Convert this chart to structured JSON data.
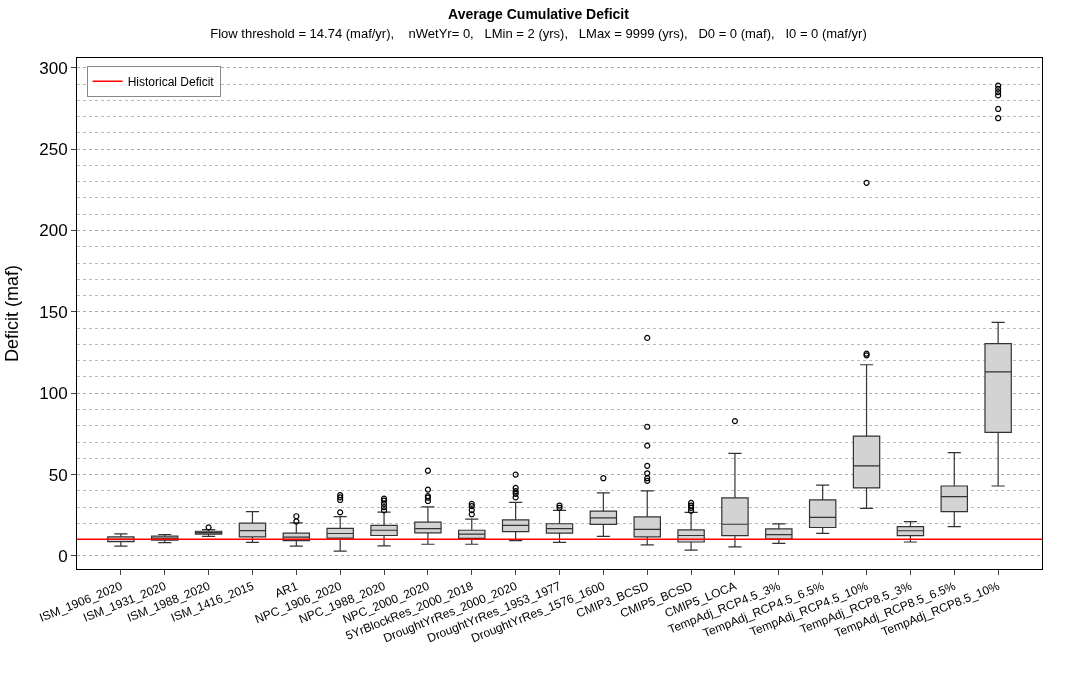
{
  "chart_data": {
    "type": "box",
    "title": "Average Cumulative Deficit",
    "subtitle": "Flow threshold = 14.74 (maf/yr),    nWetYr= 0,   LMin = 2 (yrs),   LMax = 9999 (yrs),   D0 = 0 (maf),   I0 = 0 (maf/yr)",
    "ylabel": "Deficit (maf)",
    "categories": [
      "ISM_1906_2020",
      "ISM_1931_2020",
      "ISM_1988_2020",
      "ISM_1416_2015",
      "AR1",
      "NPC_1906_2020",
      "NPC_1988_2020",
      "NPC_2000_2020",
      "5YrBlockRes_2000_2018",
      "DroughtYrRes_2000_2020",
      "DroughtYrRes_1953_1977",
      "DroughtYrRes_1576_1600",
      "CMIP3_BCSD",
      "CMIP5_BCSD",
      "CMIP5_LOCA",
      "TempAdj_RCP4.5_3%",
      "TempAdj_RCP4.5_6.5%",
      "TempAdj_RCP4.5_10%",
      "TempAdj_RCP8.5_3%",
      "TempAdj_RCP8.5_6.5%",
      "TempAdj_RCP8.5_10%"
    ],
    "color": "#d3d3d3",
    "boxes": [
      {
        "low": 6,
        "q1": 8.8,
        "median": 10.2,
        "q3": 11.8,
        "high": 13.6
      },
      {
        "low": 8.2,
        "q1": 9.8,
        "median": 11,
        "q3": 12.2,
        "high": 13.2
      },
      {
        "low": 12,
        "q1": 13.4,
        "median": 14.4,
        "q3": 15.2,
        "high": 16.2,
        "outliers": [
          17.6
        ]
      },
      {
        "low": 8.4,
        "q1": 11.8,
        "median": 15.6,
        "q3": 20.2,
        "high": 27.2
      },
      {
        "low": 6,
        "q1": 9.4,
        "median": 11.6,
        "q3": 14,
        "high": 20.4,
        "outliers": [
          21.2,
          24.4
        ]
      },
      {
        "low": 3,
        "q1": 11,
        "median": 13.8,
        "q3": 17,
        "high": 24.2,
        "outliers": [
          26.8,
          34.4,
          36,
          37.4
        ]
      },
      {
        "low": 6.2,
        "q1": 12.6,
        "median": 15.8,
        "q3": 18.8,
        "high": 27,
        "outliers": [
          28,
          30,
          32,
          34,
          35.2
        ]
      },
      {
        "low": 7.2,
        "q1": 14.2,
        "median": 16.8,
        "q3": 20.8,
        "high": 30.2,
        "outliers": [
          33.8,
          35.8,
          36.8,
          40.8,
          52.4
        ]
      },
      {
        "low": 7.2,
        "q1": 10.8,
        "median": 13.4,
        "q3": 15.8,
        "high": 22.6,
        "outliers": [
          25.6,
          28.2,
          30.6,
          32
        ]
      },
      {
        "low": 9.4,
        "q1": 15,
        "median": 18.8,
        "q3": 22.2,
        "high": 33,
        "outliers": [
          36,
          38.2,
          39.8,
          41.8,
          50
        ]
      },
      {
        "low": 8.4,
        "q1": 14,
        "median": 16.8,
        "q3": 19.8,
        "high": 28,
        "outliers": [
          29.6,
          31
        ]
      },
      {
        "low": 12,
        "q1": 19.4,
        "median": 23.4,
        "q3": 27.6,
        "high": 38.8,
        "outliers": [
          47.8
        ]
      },
      {
        "low": 6.8,
        "q1": 11.8,
        "median": 16.4,
        "q3": 24,
        "high": 40,
        "outliers": [
          46.2,
          47.8,
          50.8,
          55.4,
          67.8,
          79.4,
          134
        ]
      },
      {
        "low": 3.6,
        "q1": 8.6,
        "median": 12.6,
        "q3": 16,
        "high": 26.8,
        "outliers": [
          27.8,
          29.6,
          31,
          32.6
        ]
      },
      {
        "low": 5.6,
        "q1": 12.5,
        "median": 19.5,
        "q3": 35.7,
        "high": 63,
        "outliers": [
          82.9
        ]
      },
      {
        "low": 7.8,
        "q1": 10.4,
        "median": 13.1,
        "q3": 16.7,
        "high": 19.7
      },
      {
        "low": 13.9,
        "q1": 17.5,
        "median": 23.7,
        "q3": 34.5,
        "high": 43.6
      },
      {
        "low": 29.3,
        "q1": 41.8,
        "median": 55.4,
        "q3": 73.7,
        "high": 117.5,
        "outliers": [
          123.3,
          124.3,
          229.3
        ]
      },
      {
        "low": 8.6,
        "q1": 12.5,
        "median": 15.5,
        "q3": 18.1,
        "high": 21.1
      },
      {
        "low": 18.1,
        "q1": 27.3,
        "median": 36.5,
        "q3": 43,
        "high": 63.5
      },
      {
        "low": 43,
        "q1": 75.9,
        "median": 113.1,
        "q3": 130.5,
        "high": 143.6,
        "outliers": [
          269,
          274.7,
          283,
          285,
          287,
          289
        ]
      }
    ],
    "ylim": [
      -8,
      306
    ],
    "yticks": [
      0,
      50,
      100,
      150,
      200,
      250,
      300
    ],
    "grid": "y",
    "ref_lines": [
      {
        "axis": "y",
        "value": 10.3,
        "label": "Historical Deficit",
        "color": "#ff0000"
      }
    ],
    "legend": "top left"
  }
}
